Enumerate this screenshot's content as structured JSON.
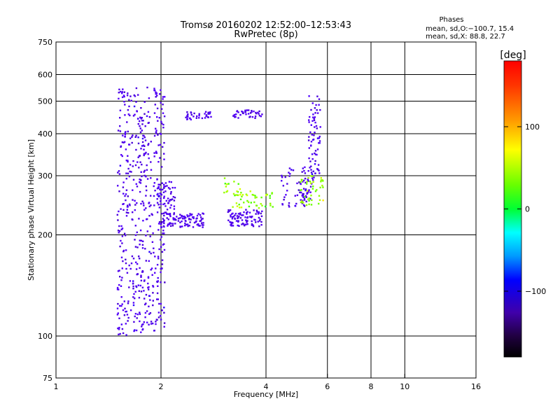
{
  "chart_data": {
    "type": "scatter",
    "title": "Tromsø 20160202 12:52:00–12:53:43",
    "subtitle": "RwPretec (8p)",
    "xlabel": "Frequency [MHz]",
    "ylabel": "Stationary phase Virtual Height [km]",
    "xscale": "log",
    "yscale": "log",
    "xlim": [
      1,
      16
    ],
    "ylim": [
      75,
      750
    ],
    "xticks": [
      1,
      2,
      4,
      6,
      8,
      10,
      16
    ],
    "yticks": [
      75,
      100,
      200,
      300,
      400,
      500,
      600,
      750
    ],
    "xgrid": [
      2,
      4,
      6,
      8,
      10
    ],
    "ygrid": [
      100,
      200,
      300,
      400,
      500,
      600
    ],
    "grid": true,
    "stats": {
      "heading": "Phases",
      "line1": "mean, sd,O:−100.7, 15.4",
      "line2": "mean, sd,X:  88.8, 22.7"
    },
    "colorbar": {
      "label": "[deg]",
      "range": [
        -180,
        180
      ],
      "ticks": [
        100,
        0,
        -100
      ],
      "tick_labels": [
        "100",
        "0",
        "−100"
      ],
      "placement": "right"
    },
    "series": [
      {
        "mode": "O",
        "phase_mean": -100.7,
        "phase_sd": 15.4,
        "traces": [
          {
            "x": [
              1.5,
              2.05
            ],
            "y": [
              100,
              550
            ],
            "n": 520
          },
          {
            "x": [
              2.0,
              2.65
            ],
            "y": [
              210,
              232
            ],
            "n": 110
          },
          {
            "x": [
              1.95,
              2.2
            ],
            "y": [
              230,
              290
            ],
            "n": 60
          },
          {
            "x": [
              2.35,
              2.85
            ],
            "y": [
              440,
              465
            ],
            "n": 35
          },
          {
            "x": [
              3.2,
              3.9
            ],
            "y": [
              445,
              470
            ],
            "n": 40
          },
          {
            "x": [
              3.1,
              3.9
            ],
            "y": [
              212,
              238
            ],
            "n": 90
          },
          {
            "x": [
              4.4,
              5.3
            ],
            "y": [
              240,
              320
            ],
            "n": 50
          },
          {
            "x": [
              5.3,
              5.75
            ],
            "y": [
              300,
              520
            ],
            "n": 70
          },
          {
            "x": [
              5.0,
              5.5
            ],
            "y": [
              250,
              300
            ],
            "n": 30
          }
        ]
      },
      {
        "mode": "X",
        "phase_mean": 88.8,
        "phase_sd": 22.7,
        "traces": [
          {
            "x": [
              3.2,
              4.2
            ],
            "y": [
              240,
              270
            ],
            "n": 45
          },
          {
            "x": [
              5.0,
              5.85
            ],
            "y": [
              245,
              300
            ],
            "n": 45
          },
          {
            "x": [
              2.9,
              3.4
            ],
            "y": [
              255,
              300
            ],
            "n": 15
          }
        ]
      }
    ]
  }
}
